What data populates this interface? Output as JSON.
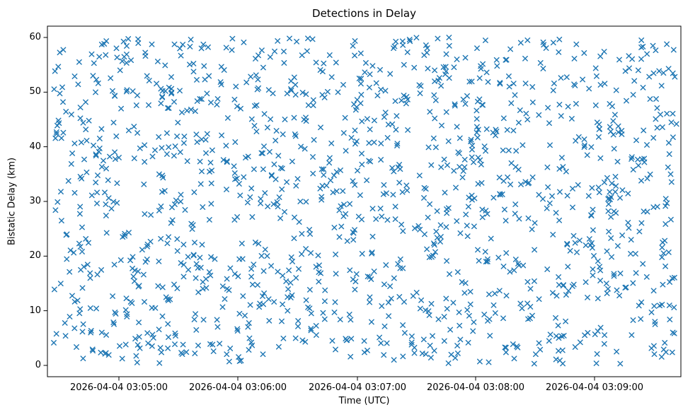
{
  "figure": {
    "title": "Detections in Delay",
    "xlabel": "Time (UTC)",
    "ylabel": "Bistatic Delay (km)"
  },
  "chart_data": {
    "type": "scatter",
    "title": "Detections in Delay",
    "xlabel": "Time (UTC)",
    "ylabel": "Bistatic Delay (km)",
    "x_tick_labels": [
      "2026-04-04 03:05:00",
      "2026-04-04 03:06:00",
      "2026-04-04 03:07:00",
      "2026-04-04 03:08:00",
      "2026-04-04 03:09:00"
    ],
    "y_tick_labels": [
      "0",
      "10",
      "20",
      "30",
      "40",
      "50",
      "60"
    ],
    "y_ticks": [
      0,
      10,
      20,
      30,
      40,
      50,
      60
    ],
    "x_axis_range": [
      "2026-04-04 03:04:24",
      "2026-04-04 03:09:44"
    ],
    "y_axis_range": [
      0,
      60
    ],
    "marker": "x",
    "marker_color": "#1f77b4",
    "n_points": 1400,
    "x_distribution": "uniform over full time range",
    "y_distribution": "uniform 0 to 60 km",
    "seed": 42,
    "grid": false,
    "legend": "none"
  }
}
